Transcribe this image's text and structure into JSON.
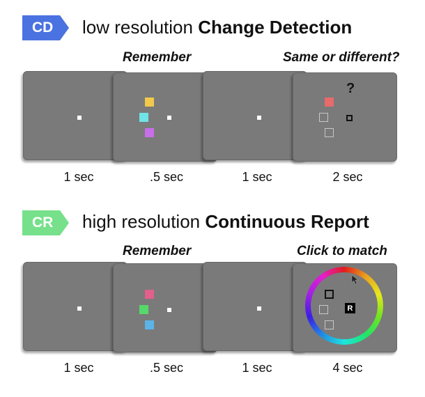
{
  "cd": {
    "badge": "CD",
    "badge_color": "#4a72e0",
    "heading_prefix": "low resolution ",
    "heading_bold": "Change Detection",
    "remember_label": "Remember",
    "test_label": "Same or different?",
    "question_mark": "?",
    "durations": [
      "1 sec",
      ".5 sec",
      "1 sec",
      "2 sec"
    ]
  },
  "cr": {
    "badge": "CR",
    "badge_color": "#76e08a",
    "heading_prefix": "high resolution ",
    "heading_bold": "Continuous Report",
    "remember_label": "Remember",
    "test_label": "Click to match",
    "response_marker": "R",
    "durations": [
      "1 sec",
      ".5 sec",
      "1 sec",
      "4 sec"
    ]
  },
  "colors": {
    "cd_memory": [
      "#f1c94b",
      "#6fe3e6",
      "#c76ee8"
    ],
    "cd_probe": "#e86a6a",
    "cr_memory": [
      "#e2608b",
      "#55d96a",
      "#5cb3e8"
    ],
    "panel": "#7a7a7a"
  }
}
